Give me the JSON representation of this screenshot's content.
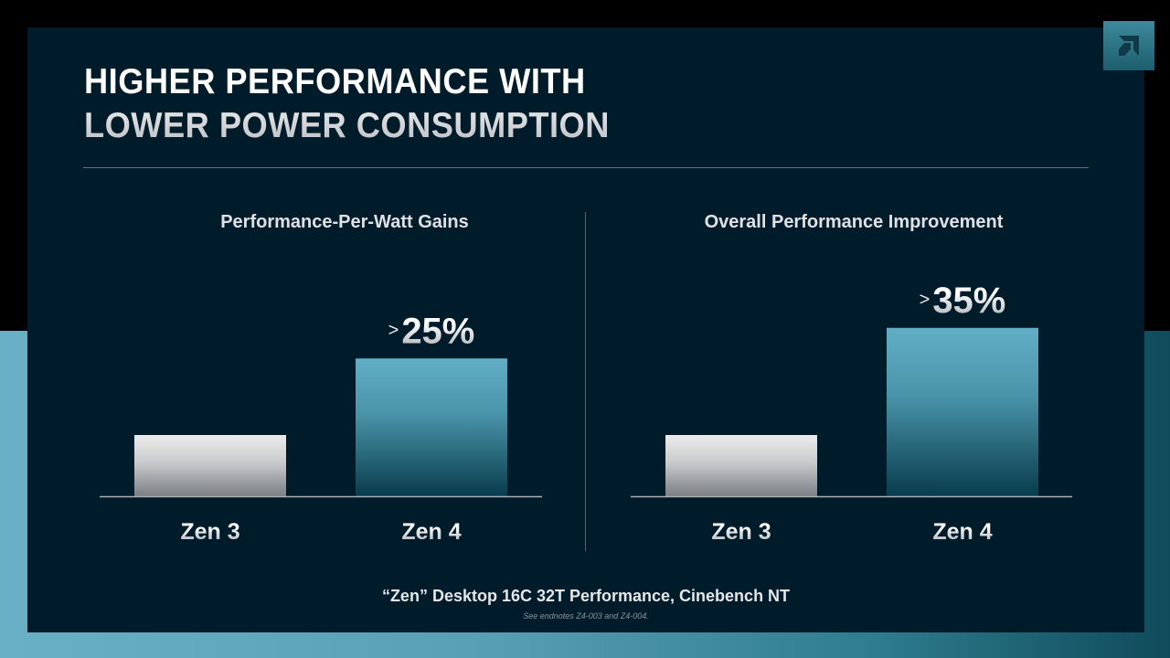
{
  "slide": {
    "title_line1": "HIGHER PERFORMANCE WITH",
    "title_line2": "LOWER POWER CONSUMPTION",
    "footer": "“Zen” Desktop 16C 32T Performance, Cinebench NT",
    "endnote": "See endnotes Z4-003 and Z4-004.",
    "logo_icon": "amd-logo-icon"
  },
  "colors": {
    "background": "#001b2a",
    "accent_teal": "#5aa8c0",
    "baseline_bar": "#d8dadc"
  },
  "chart_data": [
    {
      "type": "bar",
      "title": "Performance-Per-Watt Gains",
      "categories": [
        "Zen 3",
        "Zen 4"
      ],
      "values": [
        1.0,
        2.25
      ],
      "data_labels": [
        "",
        ">25%"
      ],
      "label_prefix": ">",
      "label_value": "25%",
      "xlabel": "",
      "ylabel": "",
      "ylim": [
        0,
        3.0
      ],
      "grid": false,
      "legend": "none"
    },
    {
      "type": "bar",
      "title": "Overall Performance Improvement",
      "categories": [
        "Zen 3",
        "Zen 4"
      ],
      "values": [
        1.0,
        2.75
      ],
      "data_labels": [
        "",
        ">35%"
      ],
      "label_prefix": ">",
      "label_value": "35%",
      "xlabel": "",
      "ylabel": "",
      "ylim": [
        0,
        3.0
      ],
      "grid": false,
      "legend": "none"
    }
  ]
}
